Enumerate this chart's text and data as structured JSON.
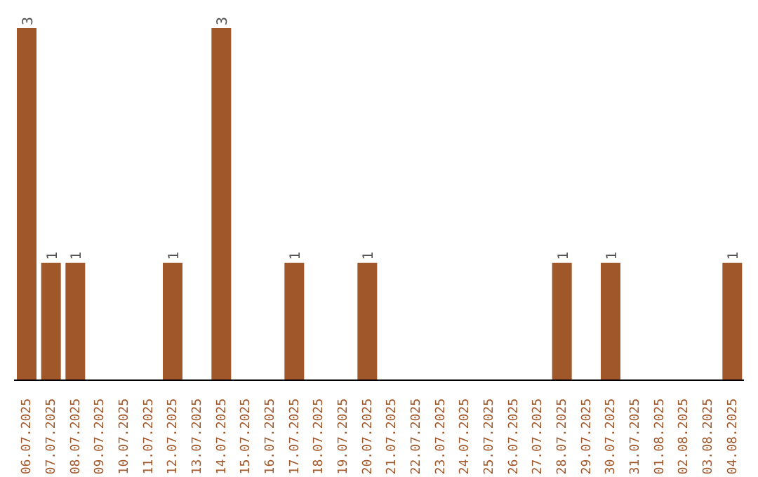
{
  "chart_data": {
    "type": "bar",
    "categories": [
      "06.07.2025",
      "07.07.2025",
      "08.07.2025",
      "09.07.2025",
      "10.07.2025",
      "11.07.2025",
      "12.07.2025",
      "13.07.2025",
      "14.07.2025",
      "15.07.2025",
      "16.07.2025",
      "17.07.2025",
      "18.07.2025",
      "19.07.2025",
      "20.07.2025",
      "21.07.2025",
      "22.07.2025",
      "23.07.2025",
      "24.07.2025",
      "25.07.2025",
      "26.07.2025",
      "27.07.2025",
      "28.07.2025",
      "29.07.2025",
      "30.07.2025",
      "31.07.2025",
      "01.08.2025",
      "02.08.2025",
      "03.08.2025",
      "04.08.2025"
    ],
    "values": [
      3,
      1,
      1,
      0,
      0,
      0,
      1,
      0,
      3,
      0,
      0,
      1,
      0,
      0,
      1,
      0,
      0,
      0,
      0,
      0,
      0,
      0,
      1,
      0,
      1,
      0,
      0,
      0,
      0,
      1
    ],
    "value_labels": [
      "3",
      "1",
      "1",
      null,
      null,
      null,
      "1",
      null,
      "3",
      null,
      null,
      "1",
      null,
      null,
      "1",
      null,
      null,
      null,
      null,
      null,
      null,
      null,
      "1",
      null,
      "1",
      null,
      null,
      null,
      null,
      "1"
    ],
    "color": "#a0572a",
    "grid": false,
    "legend": false
  }
}
